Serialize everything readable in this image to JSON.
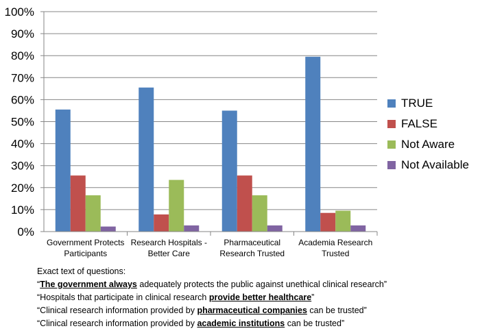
{
  "chart_data": {
    "type": "bar",
    "categories": [
      [
        "Government Protects",
        "Participants"
      ],
      [
        "Research Hospitals -",
        "Better Care"
      ],
      [
        "Pharmaceutical",
        "Research Trusted"
      ],
      [
        "Academia Research",
        "Trusted"
      ]
    ],
    "series": [
      {
        "name": "TRUE",
        "color": "#4F81BD",
        "values": [
          55.5,
          65.5,
          55,
          79.5
        ]
      },
      {
        "name": "FALSE",
        "color": "#C0504D",
        "values": [
          25.5,
          7.8,
          25.5,
          8.5
        ]
      },
      {
        "name": "Not Aware",
        "color": "#9BBB59",
        "values": [
          16.5,
          23.5,
          16.5,
          9.5
        ]
      },
      {
        "name": "Not Available",
        "color": "#8064A2",
        "values": [
          2.3,
          2.8,
          2.8,
          2.8
        ]
      }
    ],
    "ylim": [
      0,
      100
    ],
    "yticks": [
      "0%",
      "10%",
      "20%",
      "30%",
      "40%",
      "50%",
      "60%",
      "70%",
      "80%",
      "90%",
      "100%"
    ],
    "grid": true,
    "legend_position": "right"
  },
  "notes": {
    "heading": "Exact text of questions:",
    "q1": {
      "pre": "“",
      "bold": "The government always",
      "post": " adequately protects the public against unethical clinical research”"
    },
    "q2": {
      "pre": "“Hospitals that participate in clinical research ",
      "bold": "provide better healthcare",
      "post": "”"
    },
    "q3": {
      "pre": "“Clinical research information provided by ",
      "bold": "pharmaceutical companies",
      "post": " can be trusted”"
    },
    "q4": {
      "pre": "“Clinical research information provided by ",
      "bold": "academic institutions",
      "post": " can be trusted”"
    }
  }
}
